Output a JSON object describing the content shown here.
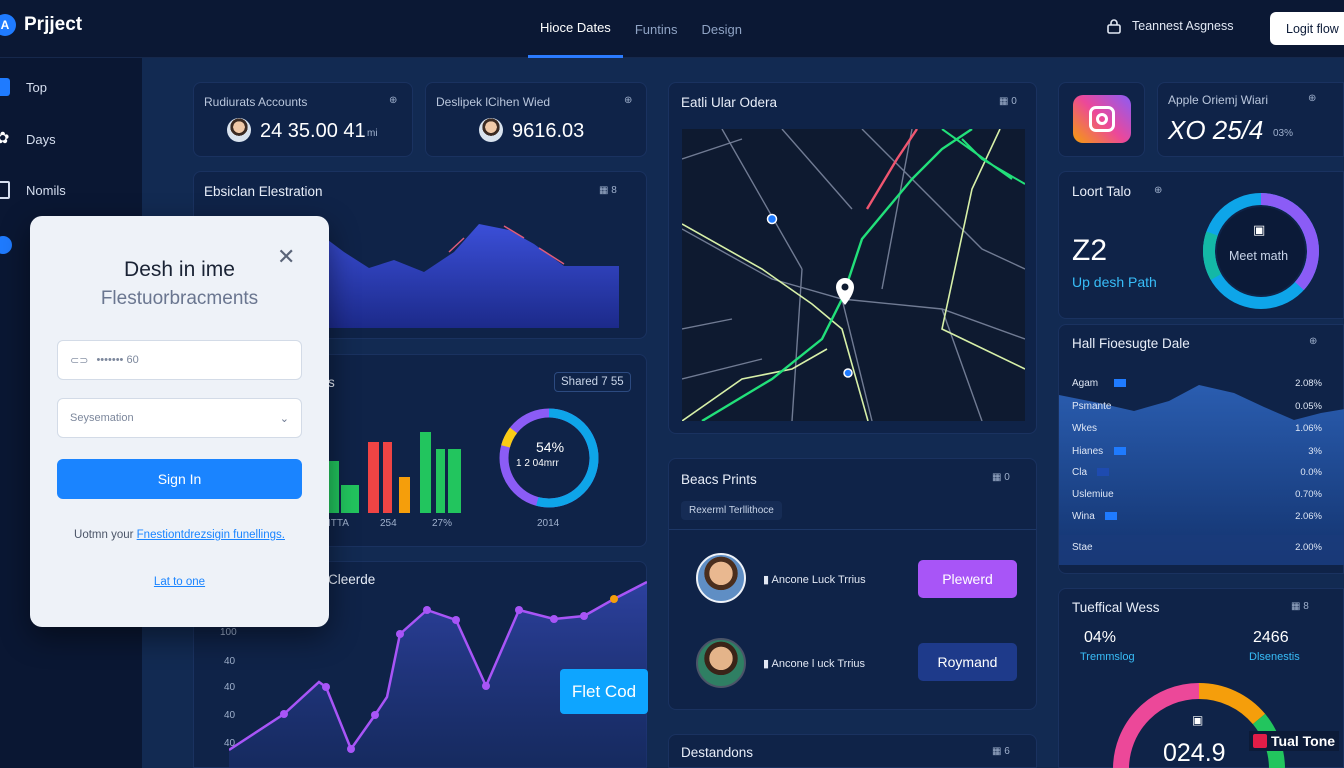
{
  "app": {
    "logo_letter": "A",
    "title": "Prjject"
  },
  "nav": {
    "tabs": [
      "Hioce Dates",
      "Funtins",
      "Design"
    ]
  },
  "header": {
    "user_label": "Teannest Asgness",
    "login_label": "Logit flow"
  },
  "sidebar": {
    "items": [
      "Top",
      "Days",
      "Nomils"
    ]
  },
  "stats": [
    {
      "title": "Rudiurats Accounts",
      "value": "24 35.00 41",
      "suffix": "mi"
    },
    {
      "title": "Deslipek lCihen Wied",
      "value": "9616.03"
    }
  ],
  "elevation": {
    "title": "Ebsiclan Elestration"
  },
  "bars_card": {
    "title_partial": "s",
    "shared": "Shared 7 55",
    "labels": [
      "ITTA",
      "254",
      "27%"
    ],
    "ring_value": "54%",
    "ring_sub": "1 2 04mrr",
    "ring_label": "2014"
  },
  "line_card": {
    "title": "Cleerde",
    "y_ticks": [
      "100",
      "40",
      "40",
      "40",
      "40"
    ],
    "tooltip": "Flet Cod"
  },
  "map_card": {
    "title": "Eatli Ular Odera"
  },
  "people_card": {
    "title": "Beacs Prints",
    "tag": "Rexerml Terllithoce",
    "people": [
      {
        "name": "Ancone Luck Trrius",
        "button": "Plewerd",
        "color": "#a855f7"
      },
      {
        "name": "Ancone l uck Trrius",
        "button": "Roymand",
        "color": "#1e3a8a"
      }
    ]
  },
  "dest_card": {
    "title": "Destandons"
  },
  "insta_card": {
    "title": "Apple Oriemj Wiari",
    "value": "XO 25/4",
    "pct": "03%"
  },
  "total_card": {
    "title": "Loort Talo",
    "value": "Z2",
    "sub": "Up desh Path",
    "ring_label": "Meet math"
  },
  "hold_card": {
    "title": "Hall Fioesugte Dale",
    "rows": [
      {
        "label": "Agam",
        "value": "2.08%"
      },
      {
        "label": "Psmante",
        "value": "0.05%"
      },
      {
        "label": "Wkes",
        "value": "1.06%"
      },
      {
        "label": "Hianes",
        "value": "3%"
      },
      {
        "label": "Cla",
        "value": "0.0%"
      },
      {
        "label": "Uslemiue",
        "value": "0.70%"
      },
      {
        "label": "Wina",
        "value": "2.06%"
      },
      {
        "label": "Stae",
        "value": "2.00%"
      }
    ]
  },
  "views_card": {
    "title": "Tueffical Wess",
    "left_value": "04%",
    "left_label": "Tremmslog",
    "right_value": "2466",
    "right_label": "Dlsenestis",
    "gauge_value": "024.9",
    "badge": "Tual Tone"
  },
  "modal": {
    "title": "Desh in ime",
    "subtitle": "Flestuorbracments",
    "password_placeholder": "••••••• 60",
    "select_value": "Seysemation",
    "sign_in": "Sign In",
    "footer_prefix": "Uotmn your",
    "footer_link": "Fnestiontdrezsigin funellings.",
    "bottom_link": "Lat to one"
  },
  "colors": {
    "accent": "#1a84ff",
    "purple": "#a855f7",
    "green": "#22c55e",
    "bg": "#0c1b38"
  }
}
